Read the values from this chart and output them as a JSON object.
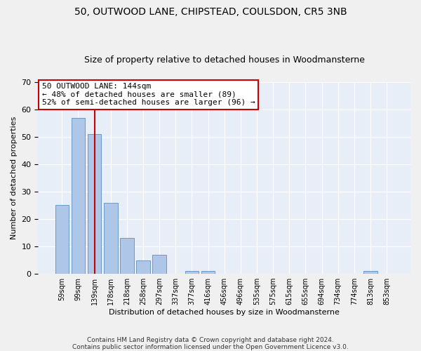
{
  "title1": "50, OUTWOOD LANE, CHIPSTEAD, COULSDON, CR5 3NB",
  "title2": "Size of property relative to detached houses in Woodmansterne",
  "xlabel": "Distribution of detached houses by size in Woodmansterne",
  "ylabel": "Number of detached properties",
  "categories": [
    "59sqm",
    "99sqm",
    "139sqm",
    "178sqm",
    "218sqm",
    "258sqm",
    "297sqm",
    "337sqm",
    "377sqm",
    "416sqm",
    "456sqm",
    "496sqm",
    "535sqm",
    "575sqm",
    "615sqm",
    "655sqm",
    "694sqm",
    "734sqm",
    "774sqm",
    "813sqm",
    "853sqm"
  ],
  "values": [
    25,
    57,
    51,
    26,
    13,
    5,
    7,
    0,
    1,
    1,
    0,
    0,
    0,
    0,
    0,
    0,
    0,
    0,
    0,
    1,
    0
  ],
  "bar_color": "#aec6e8",
  "bar_edge_color": "#5a8fc0",
  "vline_x": 2,
  "vline_color": "#cc0000",
  "annotation_text": "50 OUTWOOD LANE: 144sqm\n← 48% of detached houses are smaller (89)\n52% of semi-detached houses are larger (96) →",
  "annotation_box_color": "#ffffff",
  "annotation_box_edge": "#cc0000",
  "ylim": [
    0,
    70
  ],
  "yticks": [
    0,
    10,
    20,
    30,
    40,
    50,
    60,
    70
  ],
  "bg_color": "#e8eef7",
  "grid_color": "#ffffff",
  "footer": "Contains HM Land Registry data © Crown copyright and database right 2024.\nContains public sector information licensed under the Open Government Licence v3.0.",
  "title1_fontsize": 10,
  "title2_fontsize": 9,
  "xlabel_fontsize": 8,
  "ylabel_fontsize": 8,
  "footer_fontsize": 6.5,
  "annot_fontsize": 8
}
